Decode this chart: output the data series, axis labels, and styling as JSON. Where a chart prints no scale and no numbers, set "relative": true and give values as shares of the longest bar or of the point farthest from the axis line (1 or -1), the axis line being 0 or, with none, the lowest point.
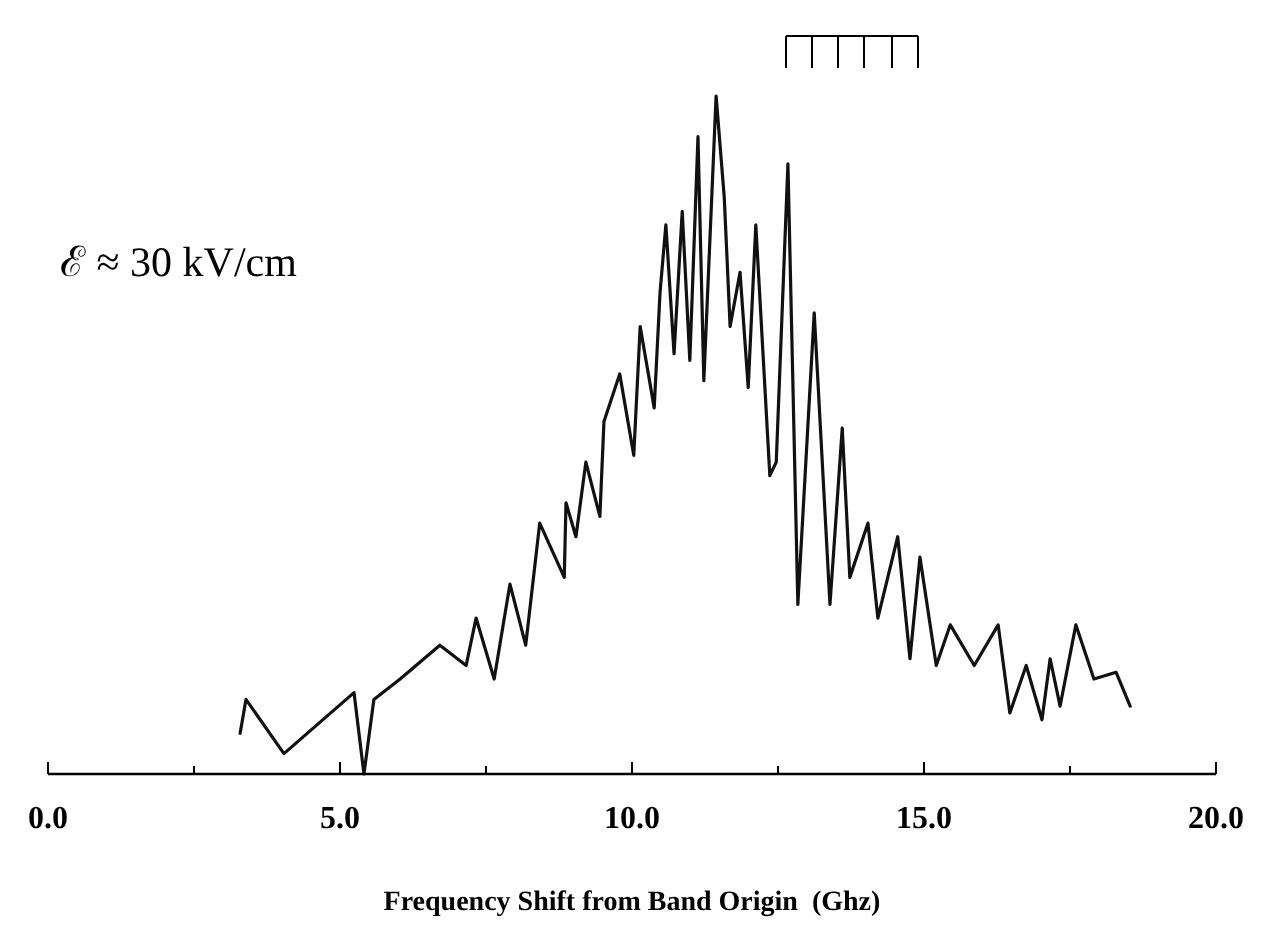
{
  "chart_data": {
    "type": "line",
    "relative": true,
    "xlabel": "Frequency Shift from Band Origin  (Ghz)",
    "annotations": [
      "ℰ ≈ 30 kV/cm"
    ],
    "xlim": [
      0,
      20
    ],
    "xticks": [
      {
        "value": 0,
        "label": "0.0"
      },
      {
        "value": 2.5,
        "label": null
      },
      {
        "value": 5,
        "label": "5.0"
      },
      {
        "value": 7.5,
        "label": null
      },
      {
        "value": 10,
        "label": "10.0"
      },
      {
        "value": 12.5,
        "label": null
      },
      {
        "value": 15,
        "label": "15.0"
      },
      {
        "value": 17.5,
        "label": null
      },
      {
        "value": 20,
        "label": "20.0"
      }
    ],
    "tick_labels": "x",
    "grid": false,
    "marker": "none",
    "line_style": "solid",
    "series": [
      {
        "color": "#111111",
        "x": [
          3.29,
          3.39,
          4.04,
          5.24,
          5.41,
          5.58,
          6.03,
          6.71,
          7.16,
          7.33,
          7.64,
          7.91,
          8.18,
          8.42,
          8.84,
          8.87,
          9.04,
          9.21,
          9.45,
          9.52,
          9.79,
          10.03,
          10.14,
          10.38,
          10.48,
          10.58,
          10.72,
          10.86,
          10.99,
          11.13,
          11.23,
          11.34,
          11.44,
          11.58,
          11.68,
          11.85,
          11.99,
          12.12,
          12.36,
          12.47,
          12.67,
          12.84,
          13.12,
          13.39,
          13.6,
          13.73,
          14.04,
          14.21,
          14.55,
          14.76,
          14.93,
          15.21,
          15.45,
          15.86,
          16.27,
          16.47,
          16.75,
          17.02,
          17.16,
          17.33,
          17.6,
          17.91,
          18.29,
          18.53
        ],
        "values": [
          0.06,
          0.11,
          0.03,
          0.12,
          0,
          0.11,
          0.14,
          0.19,
          0.16,
          0.23,
          0.14,
          0.28,
          0.19,
          0.37,
          0.29,
          0.4,
          0.35,
          0.46,
          0.38,
          0.52,
          0.59,
          0.47,
          0.66,
          0.54,
          0.71,
          0.81,
          0.62,
          0.83,
          0.61,
          0.94,
          0.58,
          0.8,
          1,
          0.85,
          0.66,
          0.74,
          0.57,
          0.81,
          0.44,
          0.46,
          0.9,
          0.25,
          0.68,
          0.25,
          0.51,
          0.29,
          0.37,
          0.23,
          0.35,
          0.17,
          0.32,
          0.16,
          0.22,
          0.16,
          0.22,
          0.09,
          0.16,
          0.08,
          0.17,
          0.1,
          0.22,
          0.14,
          0.15,
          0.1
        ]
      }
    ]
  }
}
